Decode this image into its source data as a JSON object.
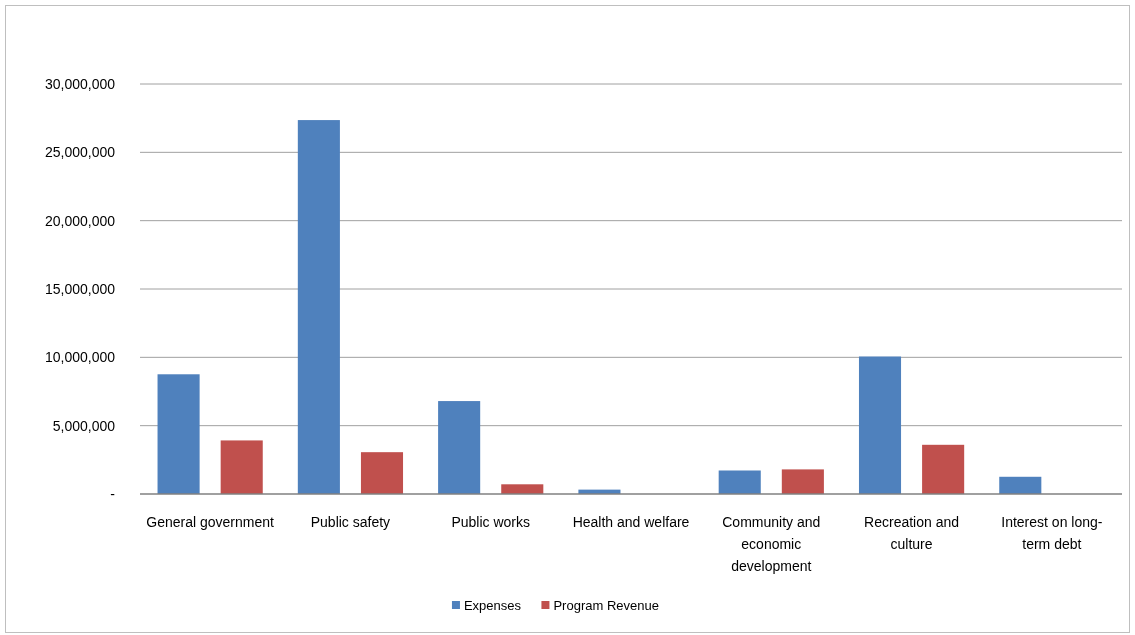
{
  "chart_data": {
    "type": "bar",
    "categories": [
      "General government",
      "Public safety",
      "Public works",
      "Health and welfare",
      "Community and economic development",
      "Recreation and culture",
      "Interest on long-term debt"
    ],
    "series": [
      {
        "name": "Expenses",
        "color": "#4f81bd",
        "values": [
          8760000,
          27360000,
          6800000,
          320000,
          1720000,
          10060000,
          1260000
        ]
      },
      {
        "name": "Program Revenue",
        "color": "#c0504d",
        "values": [
          3920000,
          3060000,
          710000,
          0,
          1800000,
          3600000,
          0
        ]
      }
    ],
    "ylim": [
      0,
      30000000
    ],
    "yticks": [
      {
        "value": 0,
        "label": "-"
      },
      {
        "value": 5000000,
        "label": "5,000,000"
      },
      {
        "value": 10000000,
        "label": "10,000,000"
      },
      {
        "value": 15000000,
        "label": "15,000,000"
      },
      {
        "value": 20000000,
        "label": "20,000,000"
      },
      {
        "value": 25000000,
        "label": "25,000,000"
      },
      {
        "value": 30000000,
        "label": "30,000,000"
      }
    ],
    "grid": "y",
    "legend": "bottom"
  }
}
